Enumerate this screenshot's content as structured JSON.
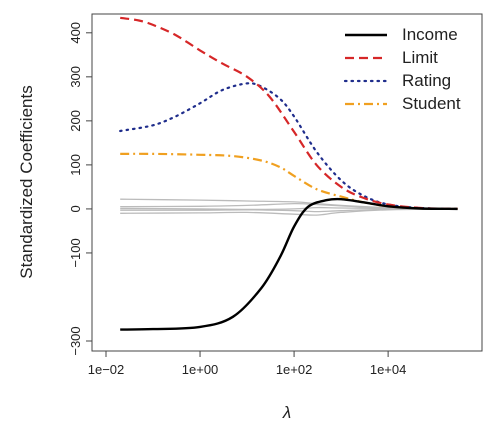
{
  "chart_data": {
    "type": "line",
    "xlabel": "λ",
    "ylabel": "Standardized Coefficients",
    "x_scale": "log10",
    "xlim": [
      0.01,
      500000
    ],
    "ylim": [
      -300,
      420
    ],
    "x_ticks": [
      {
        "value": 0.01,
        "label": "1e−02"
      },
      {
        "value": 1,
        "label": "1e+00"
      },
      {
        "value": 100,
        "label": "1e+02"
      },
      {
        "value": 10000,
        "label": "1e+04"
      }
    ],
    "y_ticks": [
      {
        "value": 400,
        "label": "400"
      },
      {
        "value": 300,
        "label": "300"
      },
      {
        "value": 200,
        "label": "200"
      },
      {
        "value": 100,
        "label": "100"
      },
      {
        "value": 0,
        "label": "0"
      },
      {
        "value": -100,
        "label": "−100"
      },
      {
        "value": -300,
        "label": "−300"
      }
    ],
    "legend_position": "top-right",
    "series": [
      {
        "name": "Income",
        "color": "#000000",
        "style": "solid",
        "points": [
          [
            0.02,
            -274
          ],
          [
            0.1,
            -273
          ],
          [
            1,
            -268
          ],
          [
            5,
            -245
          ],
          [
            20,
            -180
          ],
          [
            50,
            -110
          ],
          [
            100,
            -40
          ],
          [
            200,
            5
          ],
          [
            500,
            20
          ],
          [
            1000,
            22
          ],
          [
            3000,
            15
          ],
          [
            10000,
            6
          ],
          [
            50000,
            1
          ],
          [
            300000,
            0
          ]
        ]
      },
      {
        "name": "Limit",
        "color": "#d62728",
        "style": "dashed",
        "points": [
          [
            0.02,
            434
          ],
          [
            0.05,
            428
          ],
          [
            0.1,
            418
          ],
          [
            0.3,
            395
          ],
          [
            1,
            360
          ],
          [
            3,
            330
          ],
          [
            10,
            300
          ],
          [
            30,
            255
          ],
          [
            100,
            175
          ],
          [
            300,
            100
          ],
          [
            1000,
            50
          ],
          [
            3000,
            25
          ],
          [
            10000,
            10
          ],
          [
            50000,
            2
          ],
          [
            300000,
            0
          ]
        ]
      },
      {
        "name": "Rating",
        "color": "#1f2d8c",
        "style": "dotted",
        "points": [
          [
            0.02,
            177
          ],
          [
            0.1,
            190
          ],
          [
            0.3,
            210
          ],
          [
            1,
            240
          ],
          [
            3,
            270
          ],
          [
            10,
            285
          ],
          [
            20,
            278
          ],
          [
            50,
            250
          ],
          [
            100,
            210
          ],
          [
            300,
            130
          ],
          [
            1000,
            65
          ],
          [
            3000,
            30
          ],
          [
            10000,
            10
          ],
          [
            50000,
            2
          ],
          [
            300000,
            0
          ]
        ]
      },
      {
        "name": "Student",
        "color": "#f0a020",
        "style": "dashdot",
        "points": [
          [
            0.02,
            125
          ],
          [
            0.1,
            125
          ],
          [
            1,
            123
          ],
          [
            5,
            120
          ],
          [
            20,
            110
          ],
          [
            50,
            95
          ],
          [
            100,
            75
          ],
          [
            300,
            45
          ],
          [
            1000,
            28
          ],
          [
            3000,
            15
          ],
          [
            10000,
            6
          ],
          [
            50000,
            1
          ],
          [
            300000,
            0
          ]
        ]
      }
    ],
    "background_series": [
      {
        "color": "#bbbbbb",
        "points": [
          [
            0.02,
            22
          ],
          [
            1,
            20
          ],
          [
            10,
            18
          ],
          [
            100,
            16
          ],
          [
            300,
            12
          ],
          [
            1000,
            8
          ],
          [
            10000,
            3
          ],
          [
            300000,
            0
          ]
        ]
      },
      {
        "color": "#bbbbbb",
        "points": [
          [
            0.02,
            5
          ],
          [
            1,
            6
          ],
          [
            10,
            8
          ],
          [
            100,
            12
          ],
          [
            300,
            10
          ],
          [
            1000,
            7
          ],
          [
            10000,
            2
          ],
          [
            300000,
            0
          ]
        ]
      },
      {
        "color": "#bbbbbb",
        "points": [
          [
            0.02,
            -3
          ],
          [
            1,
            -3
          ],
          [
            10,
            -2
          ],
          [
            100,
            -4
          ],
          [
            300,
            -6
          ],
          [
            1000,
            -4
          ],
          [
            10000,
            -1
          ],
          [
            300000,
            0
          ]
        ]
      },
      {
        "color": "#bbbbbb",
        "points": [
          [
            0.02,
            -10
          ],
          [
            1,
            -9
          ],
          [
            10,
            -8
          ],
          [
            100,
            -12
          ],
          [
            300,
            -14
          ],
          [
            1000,
            -8
          ],
          [
            10000,
            -2
          ],
          [
            300000,
            0
          ]
        ]
      },
      {
        "color": "#bbbbbb",
        "points": [
          [
            0.02,
            1
          ],
          [
            1,
            0
          ],
          [
            10,
            -1
          ],
          [
            100,
            0
          ],
          [
            300,
            3
          ],
          [
            1000,
            2
          ],
          [
            10000,
            1
          ],
          [
            300000,
            0
          ]
        ]
      }
    ]
  }
}
